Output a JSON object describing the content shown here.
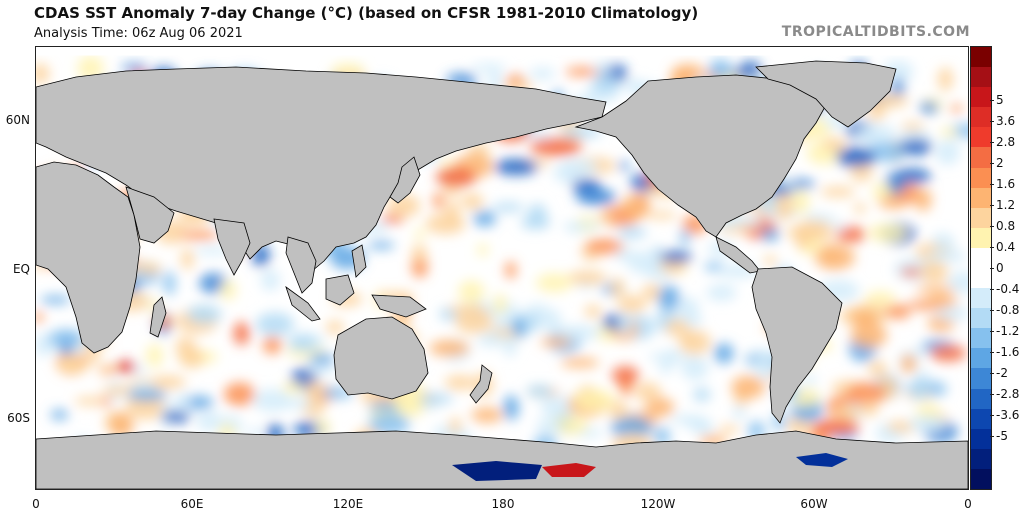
{
  "header": {
    "title": "CDAS SST Anomaly 7-day Change (°C) (based on CFSR 1981-2010 Climatology)",
    "analysis_time": "Analysis Time: 06z Aug 06 2021",
    "source": "TROPICALTIDBITS.COM"
  },
  "map": {
    "projection": "equirectangular",
    "lon_center": 180,
    "lat_labels": [
      "60N",
      "EQ",
      "60S"
    ],
    "lon_labels": [
      "0",
      "60E",
      "120E",
      "180",
      "120W",
      "60W",
      "0"
    ],
    "land_color": "#c0c0c0",
    "ice_color": "#ffffff",
    "coastline_color": "#000000"
  },
  "colorbar": {
    "labels": [
      "5",
      "3.6",
      "2.8",
      "2",
      "1.6",
      "1.2",
      "0.8",
      "0.4",
      "0",
      "-0.4",
      "-0.8",
      "-1.2",
      "-1.6",
      "-2",
      "-2.8",
      "-3.6",
      "-5"
    ],
    "colors": [
      "#7a0000",
      "#a50f15",
      "#c8161a",
      "#de2d26",
      "#ef3b2c",
      "#f46d43",
      "#fb8f52",
      "#fdb472",
      "#fdd49e",
      "#fff3b0",
      "#ffffff",
      "#ffffff",
      "#d4ecfa",
      "#b3dbf5",
      "#86c1ee",
      "#5ea6e4",
      "#3d87d6",
      "#2166c4",
      "#0d47b0",
      "#03309a",
      "#021f7c",
      "#020f5e"
    ]
  }
}
